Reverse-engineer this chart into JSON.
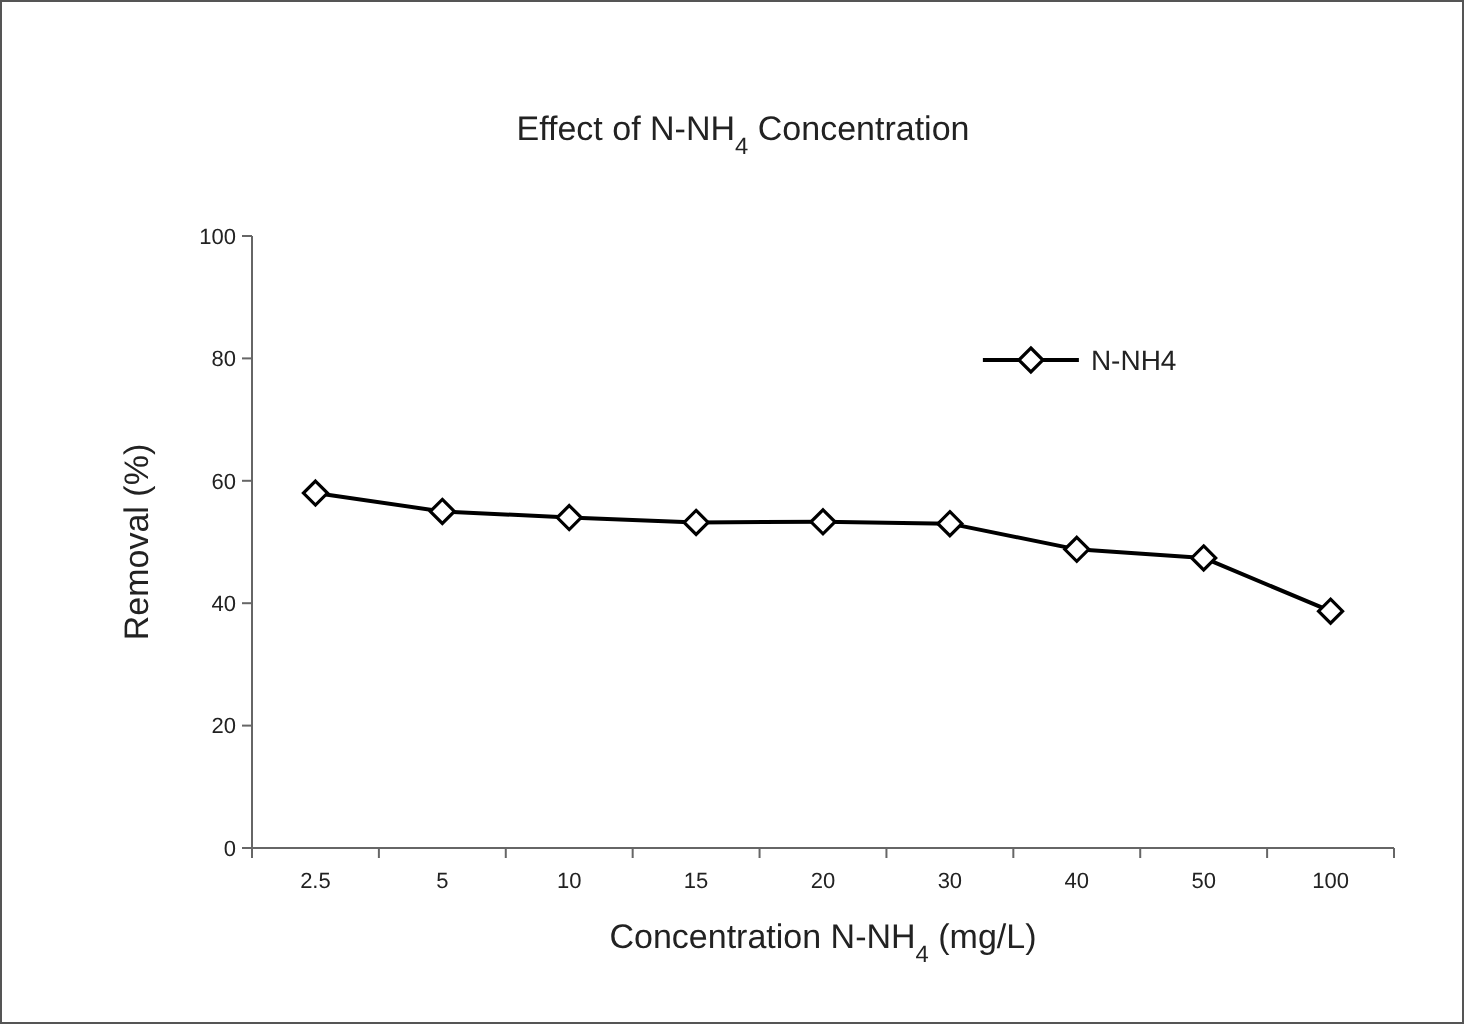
{
  "chart_data": {
    "type": "line",
    "title": "Effect of N-NH$_{4}$ Concentration",
    "xlabel": "Concentration N-NH$_{4}$ (mg/L)",
    "ylabel": "Removal (%)",
    "categories": [
      "2.5",
      "5",
      "10",
      "15",
      "20",
      "30",
      "40",
      "50",
      "100"
    ],
    "series": [
      {
        "name": "N-NH4",
        "color": "#000000",
        "values": [
          58,
          55,
          54,
          53.2,
          53.3,
          53,
          48.8,
          47.4,
          38.7
        ]
      }
    ],
    "ylim": [
      0,
      100
    ],
    "yticks": [
      0,
      20,
      40,
      60,
      80,
      100
    ],
    "grid": false,
    "legend": "top right",
    "marker": "diamond",
    "line_style": "solid"
  }
}
